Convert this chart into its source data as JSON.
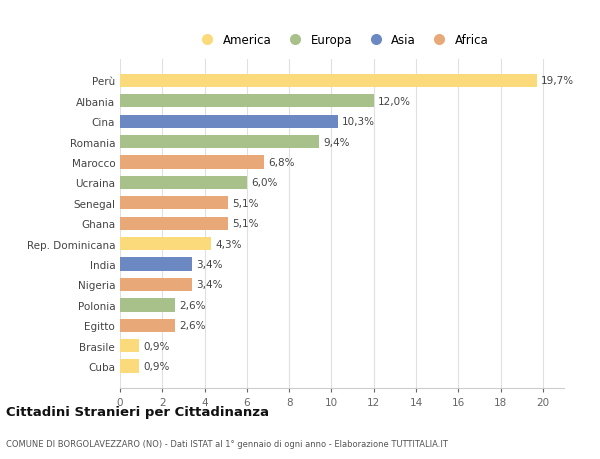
{
  "countries": [
    "Perù",
    "Albania",
    "Cina",
    "Romania",
    "Marocco",
    "Ucraina",
    "Senegal",
    "Ghana",
    "Rep. Dominicana",
    "India",
    "Nigeria",
    "Polonia",
    "Egitto",
    "Brasile",
    "Cuba"
  ],
  "values": [
    19.7,
    12.0,
    10.3,
    9.4,
    6.8,
    6.0,
    5.1,
    5.1,
    4.3,
    3.4,
    3.4,
    2.6,
    2.6,
    0.9,
    0.9
  ],
  "labels": [
    "19,7%",
    "12,0%",
    "10,3%",
    "9,4%",
    "6,8%",
    "6,0%",
    "5,1%",
    "5,1%",
    "4,3%",
    "3,4%",
    "3,4%",
    "2,6%",
    "2,6%",
    "0,9%",
    "0,9%"
  ],
  "colors": [
    "#FADA7A",
    "#A8C08A",
    "#6B88C2",
    "#A8C08A",
    "#E8A878",
    "#A8C08A",
    "#E8A878",
    "#E8A878",
    "#FADA7A",
    "#6B88C2",
    "#E8A878",
    "#A8C08A",
    "#E8A878",
    "#FADA7A",
    "#FADA7A"
  ],
  "continent_labels": [
    "America",
    "Europa",
    "Asia",
    "Africa"
  ],
  "continent_colors": [
    "#FADA7A",
    "#A8C08A",
    "#6B88C2",
    "#E8A878"
  ],
  "title": "Cittadini Stranieri per Cittadinanza",
  "subtitle": "COMUNE DI BORGOLAVEZZARO (NO) - Dati ISTAT al 1° gennaio di ogni anno - Elaborazione TUTTITALIA.IT",
  "xlim": [
    0,
    21
  ],
  "xticks": [
    0,
    2,
    4,
    6,
    8,
    10,
    12,
    14,
    16,
    18,
    20
  ],
  "bg_color": "#ffffff",
  "grid_color": "#e0e0e0"
}
